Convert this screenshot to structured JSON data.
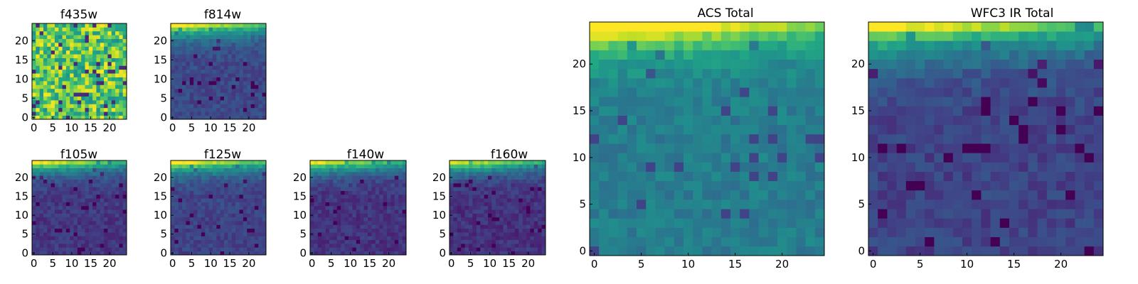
{
  "figure": {
    "background": "#ffffff",
    "colormap": "viridis"
  },
  "chart_data": [
    {
      "type": "heatmap",
      "title": "f435w",
      "size": 25,
      "xticks": [
        0,
        5,
        10,
        15,
        20
      ],
      "yticks": [
        0,
        5,
        10,
        15,
        20
      ],
      "pattern": "noisy_high"
    },
    {
      "type": "heatmap",
      "title": "f814w",
      "size": 25,
      "xticks": [
        0,
        5,
        10,
        15,
        20
      ],
      "yticks": [
        0,
        5,
        10,
        15,
        20
      ],
      "pattern": "low_corner_bright",
      "base": 0.22
    },
    {
      "type": "heatmap",
      "title": "f105w",
      "size": 25,
      "xticks": [
        0,
        5,
        10,
        15,
        20
      ],
      "yticks": [
        0,
        5,
        10,
        15,
        20
      ],
      "pattern": "low_corner_bright",
      "base": 0.16
    },
    {
      "type": "heatmap",
      "title": "f125w",
      "size": 25,
      "xticks": [
        0,
        5,
        10,
        15,
        20
      ],
      "yticks": [
        0,
        5,
        10,
        15,
        20
      ],
      "pattern": "low_corner_bright",
      "base": 0.2
    },
    {
      "type": "heatmap",
      "title": "f140w",
      "size": 25,
      "xticks": [
        0,
        5,
        10,
        15,
        20
      ],
      "yticks": [
        0,
        5,
        10,
        15,
        20
      ],
      "pattern": "low_corner_bright",
      "base": 0.15
    },
    {
      "type": "heatmap",
      "title": "f160w",
      "size": 25,
      "xticks": [
        0,
        5,
        10,
        15,
        20
      ],
      "yticks": [
        0,
        5,
        10,
        15,
        20
      ],
      "pattern": "low_corner_bright",
      "base": 0.14
    },
    {
      "type": "heatmap",
      "title": "ACS Total",
      "size": 25,
      "xticks": [
        0,
        5,
        10,
        15,
        20
      ],
      "yticks": [
        0,
        5,
        10,
        15,
        20
      ],
      "pattern": "mid_corner_bright",
      "base": 0.42
    },
    {
      "type": "heatmap",
      "title": "WFC3 IR Total",
      "size": 25,
      "xticks": [
        0,
        5,
        10,
        15,
        20
      ],
      "yticks": [
        0,
        5,
        10,
        15,
        20
      ],
      "pattern": "low_corner_bright",
      "base": 0.2
    }
  ]
}
